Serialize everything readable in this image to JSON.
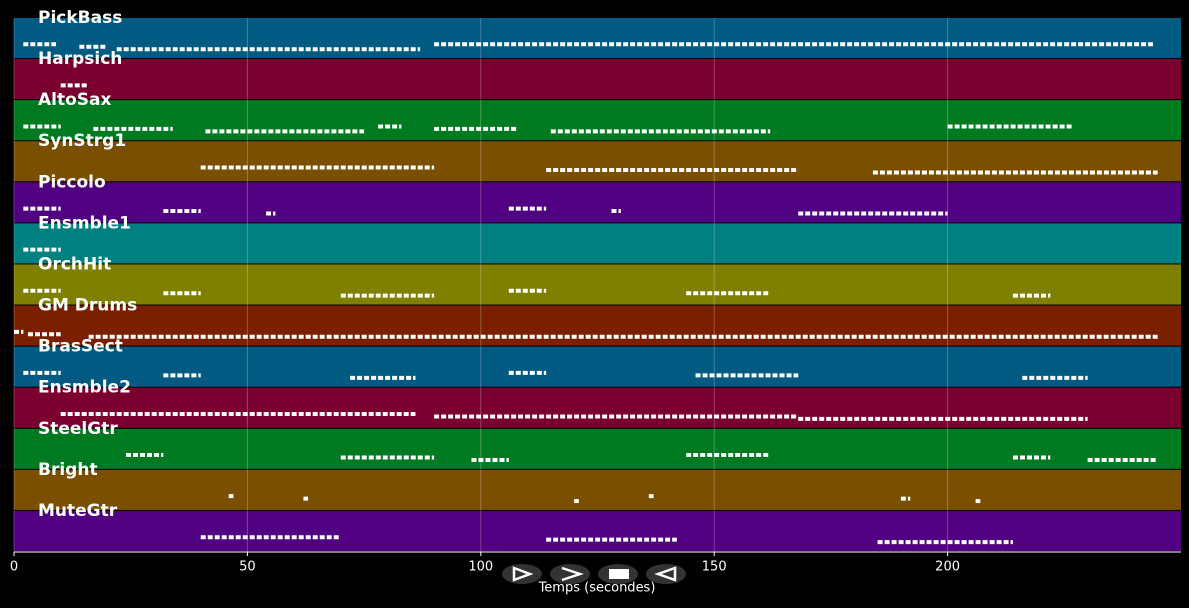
{
  "chart_data": {
    "type": "timeline",
    "x_label": "Temps (secondes)",
    "xlim": [
      0,
      250
    ],
    "xticks": [
      0,
      50,
      100,
      150,
      200
    ],
    "grid": true,
    "tracks": [
      {
        "name": "PickBass",
        "color": "#005a82",
        "segments": [
          [
            2,
            9
          ],
          [
            14,
            20
          ],
          [
            22,
            87
          ],
          [
            90,
            244
          ]
        ]
      },
      {
        "name": "Harpsich",
        "color": "#7a0030",
        "segments": [
          [
            10,
            16
          ]
        ]
      },
      {
        "name": "AltoSax",
        "color": "#007a20",
        "segments": [
          [
            2,
            10
          ],
          [
            17,
            34
          ],
          [
            41,
            75
          ],
          [
            78,
            83
          ],
          [
            90,
            108
          ],
          [
            115,
            162
          ],
          [
            200,
            227
          ]
        ]
      },
      {
        "name": "SynStrg1",
        "color": "#7a5000",
        "segments": [
          [
            40,
            90
          ],
          [
            114,
            168
          ],
          [
            184,
            245
          ]
        ]
      },
      {
        "name": "Piccolo",
        "color": "#500080",
        "segments": [
          [
            2,
            10
          ],
          [
            32,
            40
          ],
          [
            54,
            56
          ],
          [
            106,
            114
          ],
          [
            128,
            130
          ],
          [
            168,
            200
          ]
        ]
      },
      {
        "name": "Ensmble1",
        "color": "#008080",
        "segments": [
          [
            2,
            10
          ]
        ]
      },
      {
        "name": "OrchHit",
        "color": "#7f7f00",
        "segments": [
          [
            2,
            10
          ],
          [
            32,
            40
          ],
          [
            70,
            90
          ],
          [
            106,
            114
          ],
          [
            144,
            162
          ],
          [
            214,
            222
          ]
        ]
      },
      {
        "name": "GM Drums",
        "color": "#7a2000",
        "segments": [
          [
            0,
            2
          ],
          [
            3,
            10
          ],
          [
            16,
            245
          ]
        ]
      },
      {
        "name": "BrasSect",
        "color": "#005a82",
        "segments": [
          [
            2,
            10
          ],
          [
            32,
            40
          ],
          [
            72,
            86
          ],
          [
            106,
            114
          ],
          [
            146,
            168
          ],
          [
            216,
            230
          ]
        ]
      },
      {
        "name": "Ensmble2",
        "color": "#7a0030",
        "segments": [
          [
            10,
            86
          ],
          [
            90,
            168
          ],
          [
            168,
            230
          ]
        ]
      },
      {
        "name": "SteelGtr",
        "color": "#007a20",
        "segments": [
          [
            24,
            32
          ],
          [
            70,
            90
          ],
          [
            98,
            106
          ],
          [
            144,
            162
          ],
          [
            214,
            222
          ],
          [
            230,
            245
          ]
        ]
      },
      {
        "name": "Bright",
        "color": "#7a5000",
        "segments": [
          [
            46,
            47
          ],
          [
            62,
            63
          ],
          [
            120,
            121
          ],
          [
            136,
            137
          ],
          [
            190,
            192
          ],
          [
            206,
            207
          ]
        ]
      },
      {
        "name": "MuteGtr",
        "color": "#500080",
        "segments": [
          [
            40,
            70
          ],
          [
            114,
            142
          ],
          [
            185,
            214
          ]
        ]
      }
    ]
  }
}
